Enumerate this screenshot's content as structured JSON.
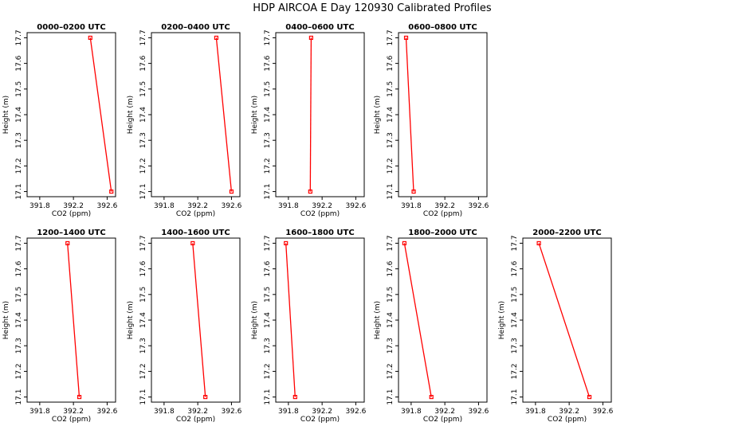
{
  "figure": {
    "title": "HDP AIRCOA E  Day 120930  Calibrated Profiles",
    "series_color": "#ff0000"
  },
  "chart_data": [
    {
      "type": "line",
      "title": "0000–0200 UTC",
      "xlabel": "CO2 (ppm)",
      "ylabel": "Height (m)",
      "xlim": [
        391.65,
        392.7
      ],
      "ylim": [
        17.08,
        17.72
      ],
      "xticks": [
        "391.8",
        "392.2",
        "392.6"
      ],
      "yticks": [
        "17.1",
        "17.2",
        "17.3",
        "17.4",
        "17.5",
        "17.6",
        "17.7"
      ],
      "points": [
        {
          "x": 392.4,
          "y": 17.7
        },
        {
          "x": 392.65,
          "y": 17.1
        }
      ]
    },
    {
      "type": "line",
      "title": "0200–0400 UTC",
      "xlabel": "CO2 (ppm)",
      "ylabel": "Height (m)",
      "xlim": [
        391.65,
        392.7
      ],
      "ylim": [
        17.08,
        17.72
      ],
      "xticks": [
        "391.8",
        "392.2",
        "392.6"
      ],
      "yticks": [
        "17.1",
        "17.2",
        "17.3",
        "17.4",
        "17.5",
        "17.6",
        "17.7"
      ],
      "points": [
        {
          "x": 392.42,
          "y": 17.7
        },
        {
          "x": 392.6,
          "y": 17.1
        }
      ]
    },
    {
      "type": "line",
      "title": "0400–0600 UTC",
      "xlabel": "CO2 (ppm)",
      "ylabel": "Height (m)",
      "xlim": [
        391.65,
        392.7
      ],
      "ylim": [
        17.08,
        17.72
      ],
      "xticks": [
        "391.8",
        "392.2",
        "392.6"
      ],
      "yticks": [
        "17.1",
        "17.2",
        "17.3",
        "17.4",
        "17.5",
        "17.6",
        "17.7"
      ],
      "points": [
        {
          "x": 392.07,
          "y": 17.7
        },
        {
          "x": 392.06,
          "y": 17.1
        }
      ]
    },
    {
      "type": "line",
      "title": "0600–0800 UTC",
      "xlabel": "CO2 (ppm)",
      "ylabel": "Height (m)",
      "xlim": [
        391.65,
        392.7
      ],
      "ylim": [
        17.08,
        17.72
      ],
      "xticks": [
        "391.8",
        "392.2",
        "392.6"
      ],
      "yticks": [
        "17.1",
        "17.2",
        "17.3",
        "17.4",
        "17.5",
        "17.6",
        "17.7"
      ],
      "points": [
        {
          "x": 391.74,
          "y": 17.7
        },
        {
          "x": 391.83,
          "y": 17.1
        }
      ]
    },
    {
      "type": "line",
      "title": "1200–1400 UTC",
      "xlabel": "CO2 (ppm)",
      "ylabel": "Height (m)",
      "xlim": [
        391.65,
        392.7
      ],
      "ylim": [
        17.08,
        17.72
      ],
      "xticks": [
        "391.8",
        "392.2",
        "392.6"
      ],
      "yticks": [
        "17.1",
        "17.2",
        "17.3",
        "17.4",
        "17.5",
        "17.6",
        "17.7"
      ],
      "points": [
        {
          "x": 392.13,
          "y": 17.7
        },
        {
          "x": 392.27,
          "y": 17.1
        }
      ]
    },
    {
      "type": "line",
      "title": "1400–1600 UTC",
      "xlabel": "CO2 (ppm)",
      "ylabel": "Height (m)",
      "xlim": [
        391.65,
        392.7
      ],
      "ylim": [
        17.08,
        17.72
      ],
      "xticks": [
        "391.8",
        "392.2",
        "392.6"
      ],
      "yticks": [
        "17.1",
        "17.2",
        "17.3",
        "17.4",
        "17.5",
        "17.6",
        "17.7"
      ],
      "points": [
        {
          "x": 392.14,
          "y": 17.7
        },
        {
          "x": 392.29,
          "y": 17.1
        }
      ]
    },
    {
      "type": "line",
      "title": "1600–1800 UTC",
      "xlabel": "CO2 (ppm)",
      "ylabel": "Height (m)",
      "xlim": [
        391.65,
        392.7
      ],
      "ylim": [
        17.08,
        17.72
      ],
      "xticks": [
        "391.8",
        "392.2",
        "392.6"
      ],
      "yticks": [
        "17.1",
        "17.2",
        "17.3",
        "17.4",
        "17.5",
        "17.6",
        "17.7"
      ],
      "points": [
        {
          "x": 391.77,
          "y": 17.7
        },
        {
          "x": 391.88,
          "y": 17.1
        }
      ]
    },
    {
      "type": "line",
      "title": "1800–2000 UTC",
      "xlabel": "CO2 (ppm)",
      "ylabel": "Height (m)",
      "xlim": [
        391.65,
        392.7
      ],
      "ylim": [
        17.08,
        17.72
      ],
      "xticks": [
        "391.8",
        "392.2",
        "392.6"
      ],
      "yticks": [
        "17.1",
        "17.2",
        "17.3",
        "17.4",
        "17.5",
        "17.6",
        "17.7"
      ],
      "points": [
        {
          "x": 391.72,
          "y": 17.7
        },
        {
          "x": 392.04,
          "y": 17.1
        }
      ]
    },
    {
      "type": "line",
      "title": "2000–2200 UTC",
      "xlabel": "CO2 (ppm)",
      "ylabel": "Height (m)",
      "xlim": [
        391.65,
        392.7
      ],
      "ylim": [
        17.08,
        17.72
      ],
      "xticks": [
        "391.8",
        "392.2",
        "392.6"
      ],
      "yticks": [
        "17.1",
        "17.2",
        "17.3",
        "17.4",
        "17.5",
        "17.6",
        "17.7"
      ],
      "points": [
        {
          "x": 391.84,
          "y": 17.7
        },
        {
          "x": 392.44,
          "y": 17.1
        }
      ]
    }
  ]
}
